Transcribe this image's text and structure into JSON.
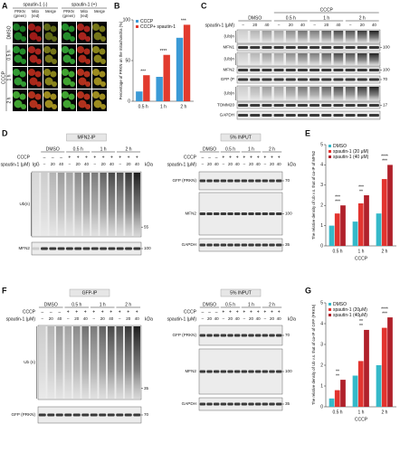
{
  "panel_labels": [
    "A",
    "B",
    "C",
    "D",
    "E",
    "F",
    "G"
  ],
  "panel_a": {
    "groups": [
      "spautin-1 (-)",
      "spautin-1 (+)"
    ],
    "columns": [
      [
        "PRKN",
        "(green)"
      ],
      [
        "Mito",
        "(red)"
      ],
      [
        "Merge"
      ]
    ],
    "rows": [
      "DMSO",
      "0.5 h",
      "1 h",
      "2 h"
    ],
    "treatment": "CCCP"
  },
  "chart_data": [
    {
      "type": "bar",
      "ylabel": "Percentage of PRKN on the mitochondria (%)",
      "categories": [
        "0.5 h",
        "1 h",
        "2 h"
      ],
      "series": [
        {
          "name": "CCCP",
          "color": "#3b9ad6",
          "values": [
            12,
            30,
            78
          ]
        },
        {
          "name": "CCCP+ spautin-1",
          "color": "#e23b2e",
          "values": [
            32,
            57,
            94
          ]
        }
      ],
      "ylim": [
        0,
        100
      ],
      "yticks": [
        0,
        50,
        100
      ],
      "annotations": [
        [
          "***"
        ],
        [
          "****"
        ],
        [
          "***"
        ]
      ],
      "legend": "upper left"
    },
    {
      "type": "bar",
      "ylabel": "The relative density of Ub v.s. that of co-IP of MFN2",
      "xlabel": "CCCP",
      "categories": [
        "0.5 h",
        "1 h",
        "2 h"
      ],
      "series": [
        {
          "name": "DMSO",
          "color": "#35b9c9",
          "values": [
            1.0,
            1.2,
            1.6
          ]
        },
        {
          "name": "spautin-1 (20 μM)",
          "color": "#e3342f",
          "values": [
            1.6,
            2.1,
            3.3
          ]
        },
        {
          "name": "spautin-1 (40 μM)",
          "color": "#b0202a",
          "values": [
            2.0,
            2.5,
            4.0
          ]
        }
      ],
      "ylim": [
        0,
        5
      ],
      "yticks": [
        0,
        1,
        2,
        3,
        4,
        5
      ],
      "annotations": [
        [
          "***",
          "***"
        ],
        [
          "**",
          "***"
        ],
        [
          "***",
          "****"
        ]
      ],
      "legend": "upper left"
    },
    {
      "type": "bar",
      "ylabel": "The relative density of Ub v.s. that of co-IP of GFP (PRKN)",
      "xlabel": "CCCP",
      "categories": [
        "0.5 h",
        "1 h",
        "2 h"
      ],
      "series": [
        {
          "name": "DMSO",
          "color": "#35b9c9",
          "values": [
            0.4,
            1.5,
            2.0
          ]
        },
        {
          "name": "spautin-1 (20μM)",
          "color": "#e3342f",
          "values": [
            0.8,
            2.2,
            3.8
          ]
        },
        {
          "name": "spautin-1 (40μM)",
          "color": "#b0202a",
          "values": [
            1.3,
            3.7,
            4.3
          ]
        }
      ],
      "ylim": [
        0,
        5
      ],
      "yticks": [
        0,
        1,
        2,
        3,
        4,
        5
      ],
      "annotations": [
        [
          "**",
          "**"
        ],
        [
          "**",
          "**"
        ],
        [
          "***",
          "****"
        ]
      ],
      "legend": "upper left"
    }
  ],
  "panel_c": {
    "group_header": "CCCP",
    "groups": [
      "DMSO",
      "0.5 h",
      "1 h",
      "2 h"
    ],
    "dose_label": "spautin-1 (μM)",
    "doses": [
      "–",
      "20",
      "40",
      "–",
      "20",
      "40",
      "–",
      "20",
      "40",
      "–",
      "20",
      "40"
    ],
    "blots": [
      {
        "label": "(Ub)n"
      },
      {
        "label": "MFN1",
        "marker": 100
      },
      {
        "label": "(Ub)n"
      },
      {
        "label": "MFN2",
        "marker": 100
      },
      {
        "label": "GFP (P",
        "marker": 70
      },
      {
        "label": "(Ub)n"
      },
      {
        "label": "TOMM20",
        "marker": 17
      },
      {
        "label": "GAPDH"
      }
    ]
  },
  "panel_d_ip": {
    "title": "MFN2-IP",
    "groups": [
      "DMSO",
      "0.5 h",
      "1 h",
      "2 h"
    ],
    "cccp_label": "CCCP",
    "cccp": [
      "–",
      "–",
      "–",
      "+",
      "+",
      "+",
      "+",
      "+",
      "+",
      "+",
      "+",
      "+"
    ],
    "dose_label": "spautin-1 (μM)",
    "control_lane": "IgG",
    "doses": [
      "–",
      "20",
      "40",
      "–",
      "20",
      "40",
      "–",
      "20",
      "40",
      "–",
      "20",
      "40"
    ],
    "kda": "kDa",
    "blots": [
      {
        "label": "Ub(n)",
        "marker": 55
      },
      {
        "label": "MFN2",
        "marker": 100
      }
    ]
  },
  "panel_d_input": {
    "title": "5% INPUT",
    "groups": [
      "DMSO",
      "0.5 h",
      "1 h",
      "2 h"
    ],
    "cccp_label": "CCCP",
    "cccp": [
      "–",
      "–",
      "–",
      "+",
      "+",
      "+",
      "+",
      "+",
      "+",
      "+",
      "+",
      "+"
    ],
    "dose_label": "spautin-1 (μM)",
    "doses": [
      "–",
      "20",
      "40",
      "–",
      "20",
      "40",
      "–",
      "20",
      "40",
      "–",
      "20",
      "40"
    ],
    "kda": "kDa",
    "blots": [
      {
        "label": "GFP (PRKN)",
        "marker": 70
      },
      {
        "label": "MFN2",
        "marker": 100
      },
      {
        "label": "GAPDH",
        "marker": 35
      }
    ]
  },
  "panel_f_ip": {
    "title": "GFP-IP",
    "groups": [
      "DMSO",
      "0.5 h",
      "1 h",
      "2 h"
    ],
    "cccp_label": "CCCP",
    "cccp": [
      "–",
      "–",
      "–",
      "+",
      "+",
      "+",
      "+",
      "+",
      "+",
      "+",
      "+",
      "+"
    ],
    "dose_label": "spautin-1 (μM)",
    "doses": [
      "–",
      "20",
      "40",
      "–",
      "20",
      "40",
      "–",
      "20",
      "40",
      "–",
      "20",
      "40"
    ],
    "kda": "kDa",
    "blots": [
      {
        "label": "Ub (n)",
        "marker": 35
      },
      {
        "label": "GFP (PRKN)",
        "marker": 70
      }
    ]
  },
  "panel_f_input": {
    "title": "5% INPUT",
    "groups": [
      "DMSO",
      "0.5 h",
      "1 h",
      "2 h"
    ],
    "cccp_label": "CCCP",
    "cccp": [
      "–",
      "–",
      "–",
      "+",
      "+",
      "+",
      "+",
      "+",
      "+",
      "+",
      "+",
      "+"
    ],
    "dose_label": "spautin-1 (μM)",
    "doses": [
      "–",
      "20",
      "40",
      "–",
      "20",
      "40",
      "–",
      "20",
      "40",
      "–",
      "20",
      "40"
    ],
    "kda": "kDa",
    "blots": [
      {
        "label": "GFP (PRKN)",
        "marker": 70
      },
      {
        "label": "MFN2",
        "marker": 100
      },
      {
        "label": "GAPDH",
        "marker": 35
      }
    ]
  }
}
